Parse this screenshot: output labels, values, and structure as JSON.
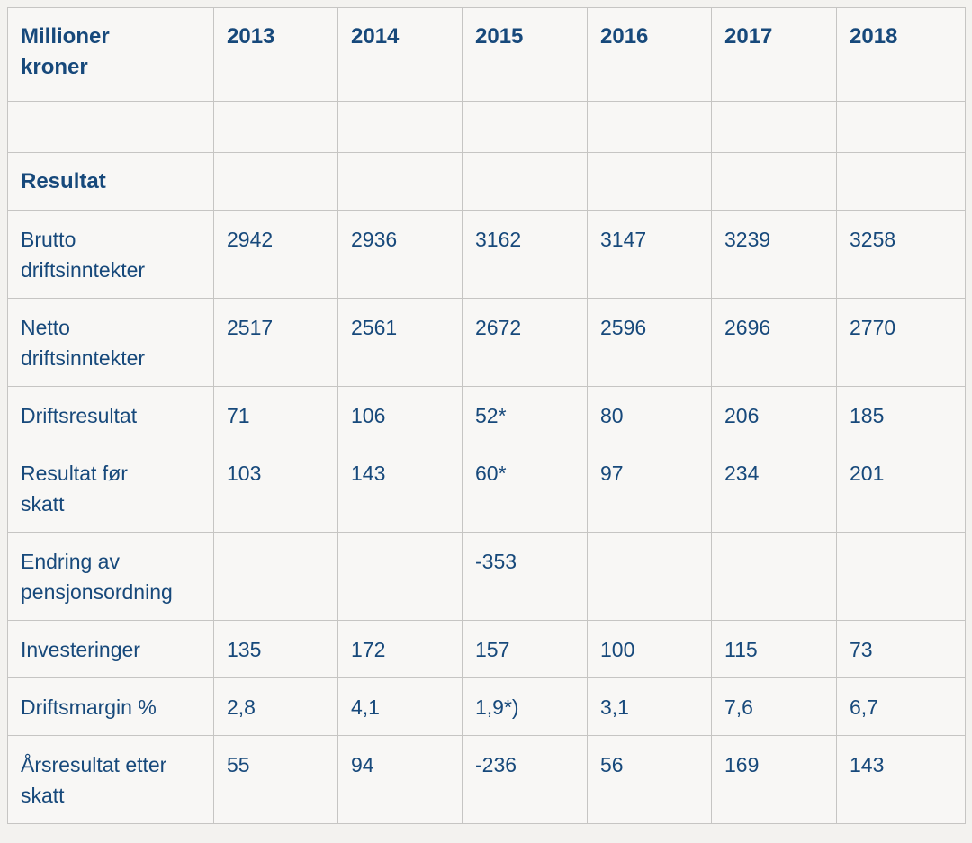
{
  "table": {
    "corner_label": "Millioner\nkroner",
    "years": [
      "2013",
      "2014",
      "2015",
      "2016",
      "2017",
      "2018"
    ],
    "rows": [
      {
        "type": "empty",
        "label": "",
        "values": [
          "",
          "",
          "",
          "",
          "",
          ""
        ]
      },
      {
        "type": "section",
        "label": "Resultat",
        "values": [
          "",
          "",
          "",
          "",
          "",
          ""
        ]
      },
      {
        "type": "data",
        "label": "Brutto\ndriftsinntekter",
        "values": [
          "2942",
          "2936",
          "3162",
          "3147",
          "3239",
          "3258"
        ]
      },
      {
        "type": "data",
        "label": "Netto\ndriftsinntekter",
        "values": [
          "2517",
          "2561",
          "2672",
          "2596",
          "2696",
          "2770"
        ]
      },
      {
        "type": "data",
        "label": "Driftsresultat",
        "values": [
          "71",
          "106",
          "52*",
          "80",
          "206",
          "185"
        ]
      },
      {
        "type": "data",
        "label": "Resultat før\nskatt",
        "values": [
          "103",
          "143",
          "60*",
          "97",
          "234",
          "201"
        ]
      },
      {
        "type": "data",
        "label": "Endring av\npensjonsordning",
        "values": [
          "",
          "",
          "-353",
          "",
          "",
          ""
        ]
      },
      {
        "type": "data",
        "label": "Investeringer",
        "values": [
          "135",
          "172",
          "157",
          "100",
          "115",
          "73"
        ]
      },
      {
        "type": "data",
        "label": "Driftsmargin %",
        "values": [
          "2,8",
          "4,1",
          "1,9*)",
          "3,1",
          "7,6",
          "6,7"
        ]
      },
      {
        "type": "data",
        "label": "Årsresultat etter\nskatt",
        "values": [
          "55",
          "94",
          "-236",
          "56",
          "169",
          "143"
        ]
      }
    ]
  },
  "colors": {
    "text_navy": "#17497b",
    "cell_background": "#f8f7f5",
    "page_background": "#f3f2ef",
    "grid_border": "#c6c5c3"
  },
  "chart_data": {
    "type": "table",
    "title": "Millioner kroner",
    "columns": [
      "2013",
      "2014",
      "2015",
      "2016",
      "2017",
      "2018"
    ],
    "section": "Resultat",
    "rows": [
      {
        "label": "Brutto driftsinntekter",
        "values": [
          2942,
          2936,
          3162,
          3147,
          3239,
          3258
        ]
      },
      {
        "label": "Netto driftsinntekter",
        "values": [
          2517,
          2561,
          2672,
          2596,
          2696,
          2770
        ]
      },
      {
        "label": "Driftsresultat",
        "values": [
          71,
          106,
          52,
          80,
          206,
          185
        ],
        "notes": {
          "2015": "52*"
        }
      },
      {
        "label": "Resultat før skatt",
        "values": [
          103,
          143,
          60,
          97,
          234,
          201
        ],
        "notes": {
          "2015": "60*"
        }
      },
      {
        "label": "Endring av pensjonsordning",
        "values": [
          null,
          null,
          -353,
          null,
          null,
          null
        ]
      },
      {
        "label": "Investeringer",
        "values": [
          135,
          172,
          157,
          100,
          115,
          73
        ]
      },
      {
        "label": "Driftsmargin %",
        "values": [
          2.8,
          4.1,
          1.9,
          3.1,
          7.6,
          6.7
        ],
        "notes": {
          "2015": "1,9*)"
        }
      },
      {
        "label": "Årsresultat etter skatt",
        "values": [
          55,
          94,
          -236,
          56,
          169,
          143
        ]
      }
    ]
  }
}
